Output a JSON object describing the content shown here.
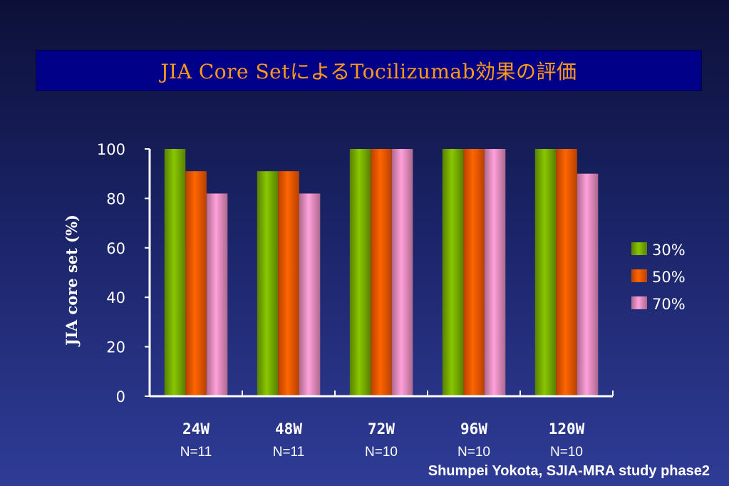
{
  "title": "JIA Core SetによるTocilizumab効果の評価",
  "credit": "Shumpei Yokota, SJIA-MRA study phase2",
  "chart_data": {
    "type": "bar",
    "ylabel": "JIA core set (%)",
    "ylim": [
      0,
      100
    ],
    "yticks": [
      0,
      20,
      40,
      60,
      80,
      100
    ],
    "categories": [
      "24W",
      "48W",
      "72W",
      "96W",
      "120W"
    ],
    "category_notes": [
      "N=11",
      "N=11",
      "N=10",
      "N=10",
      "N=10"
    ],
    "series": [
      {
        "name": "30%",
        "values": [
          100,
          91,
          100,
          100,
          100
        ],
        "color": "#7ab200"
      },
      {
        "name": "50%",
        "values": [
          91,
          91,
          100,
          100,
          100
        ],
        "color": "#ff5a00"
      },
      {
        "name": "70%",
        "values": [
          82,
          82,
          100,
          100,
          90
        ],
        "color": "#f090c4"
      }
    ],
    "legend_position": "right",
    "grid": false
  },
  "colors": {
    "background": "#1a2366",
    "title_bar": "#000088",
    "title_text": "#ff9a1a",
    "axis": "#ffffff"
  }
}
